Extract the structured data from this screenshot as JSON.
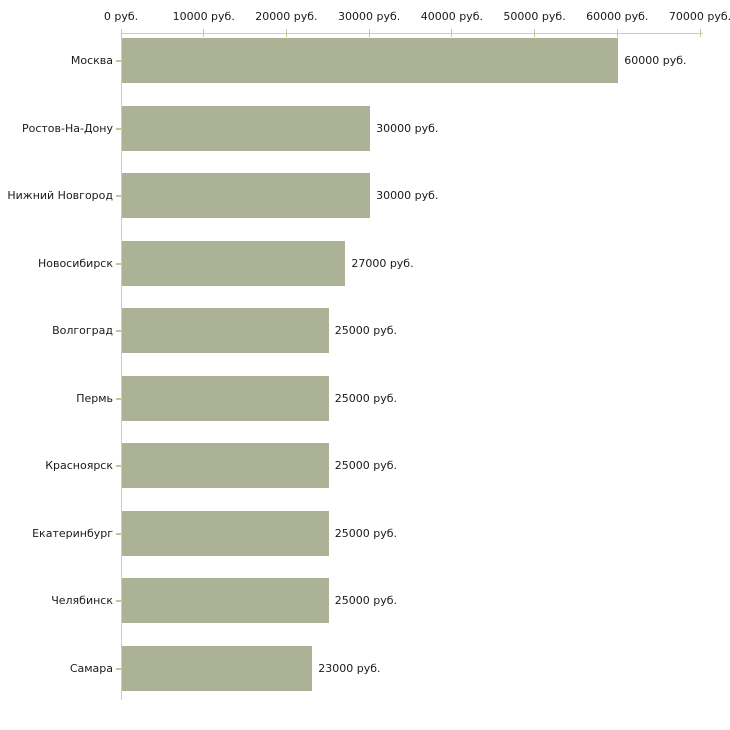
{
  "chart_data": {
    "type": "bar",
    "orientation": "horizontal",
    "title": "",
    "xlabel": "",
    "ylabel": "",
    "categories": [
      "Москва",
      "Ростов-На-Дону",
      "Нижний Новгород",
      "Новосибирск",
      "Волгоград",
      "Пермь",
      "Красноярск",
      "Екатеринбург",
      "Челябинск",
      "Самара"
    ],
    "values": [
      60000,
      30000,
      30000,
      27000,
      25000,
      25000,
      25000,
      25000,
      25000,
      23000
    ],
    "value_labels": [
      "60000 руб.",
      "30000 руб.",
      "30000 руб.",
      "27000 руб.",
      "25000 руб.",
      "25000 руб.",
      "25000 руб.",
      "25000 руб.",
      "25000 руб.",
      "23000 руб."
    ],
    "x_ticks": [
      0,
      10000,
      20000,
      30000,
      40000,
      50000,
      60000,
      70000
    ],
    "x_tick_labels": [
      "0 руб.",
      "10000 руб.",
      "20000 руб.",
      "30000 руб.",
      "40000 руб.",
      "50000 руб.",
      "60000 руб.",
      "70000 руб."
    ],
    "xlim": [
      0,
      70000
    ],
    "grid": false,
    "legend": false,
    "colors": {
      "bar": "#acb296",
      "axis_line": "#cccccc",
      "tick_mark": "#c4c59c",
      "text": "#1a1a1a",
      "background": "#ffffff"
    }
  }
}
